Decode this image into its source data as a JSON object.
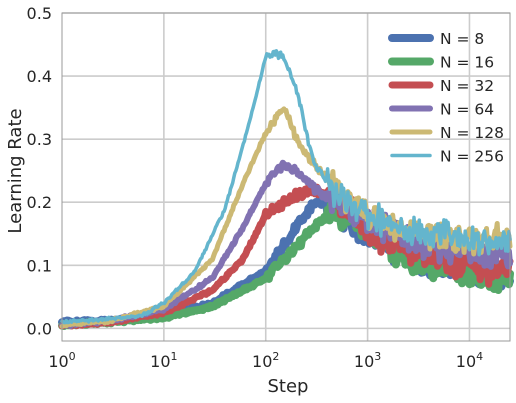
{
  "chart_data": {
    "type": "line",
    "title": "",
    "xlabel": "Step",
    "ylabel": "Learning Rate",
    "xscale": "log",
    "xlim": [
      1,
      25000
    ],
    "ylim": [
      -0.02,
      0.5
    ],
    "grid": true,
    "legend_position": "top-right",
    "x_ticks": [
      {
        "value": 1,
        "base": "10",
        "exp": "0"
      },
      {
        "value": 10,
        "base": "10",
        "exp": "1"
      },
      {
        "value": 100,
        "base": "10",
        "exp": "2"
      },
      {
        "value": 1000,
        "base": "10",
        "exp": "3"
      },
      {
        "value": 10000,
        "base": "10",
        "exp": "4"
      }
    ],
    "y_ticks": [
      "0.0",
      "0.1",
      "0.2",
      "0.3",
      "0.4",
      "0.5"
    ],
    "y_tick_values": [
      0.0,
      0.1,
      0.2,
      0.3,
      0.4,
      0.5
    ],
    "series": [
      {
        "name": "N = 8",
        "color": "#4C72B0",
        "width": 8,
        "x": [
          1,
          3,
          10,
          30,
          60,
          100,
          200,
          300,
          400,
          500,
          1000,
          2000,
          5000,
          10000,
          25000
        ],
        "y": [
          0.01,
          0.012,
          0.02,
          0.04,
          0.07,
          0.09,
          0.16,
          0.2,
          0.2,
          0.19,
          0.15,
          0.12,
          0.1,
          0.09,
          0.08
        ]
      },
      {
        "name": "N = 16",
        "color": "#55A868",
        "width": 8,
        "x": [
          1,
          3,
          10,
          30,
          60,
          100,
          200,
          300,
          400,
          500,
          700,
          1000,
          2000,
          5000,
          10000,
          25000
        ],
        "y": [
          0.005,
          0.01,
          0.017,
          0.035,
          0.06,
          0.08,
          0.13,
          0.16,
          0.18,
          0.19,
          0.17,
          0.15,
          0.12,
          0.1,
          0.09,
          0.08
        ]
      },
      {
        "name": "N = 32",
        "color": "#C44E52",
        "width": 7,
        "x": [
          1,
          3,
          10,
          30,
          60,
          100,
          150,
          200,
          300,
          500,
          1000,
          2000,
          5000,
          10000,
          25000
        ],
        "y": [
          0.005,
          0.01,
          0.025,
          0.06,
          0.11,
          0.18,
          0.2,
          0.21,
          0.22,
          0.21,
          0.16,
          0.13,
          0.11,
          0.1,
          0.09
        ]
      },
      {
        "name": "N = 64",
        "color": "#8172B2",
        "width": 6,
        "x": [
          1,
          3,
          10,
          30,
          60,
          100,
          150,
          200,
          300,
          500,
          1000,
          2000,
          5000,
          10000,
          25000
        ],
        "y": [
          0.005,
          0.012,
          0.03,
          0.08,
          0.16,
          0.23,
          0.26,
          0.25,
          0.22,
          0.2,
          0.17,
          0.15,
          0.13,
          0.12,
          0.11
        ]
      },
      {
        "name": "N = 128",
        "color": "#CCB974",
        "width": 5,
        "x": [
          1,
          3,
          10,
          30,
          60,
          100,
          150,
          200,
          300,
          500,
          1000,
          2000,
          5000,
          10000,
          25000
        ],
        "y": [
          0.005,
          0.012,
          0.035,
          0.11,
          0.23,
          0.31,
          0.35,
          0.3,
          0.26,
          0.22,
          0.18,
          0.16,
          0.15,
          0.14,
          0.14
        ]
      },
      {
        "name": "N = 256",
        "color": "#64B5CD",
        "width": 3.5,
        "x": [
          1,
          3,
          6,
          10,
          20,
          40,
          70,
          100,
          120,
          150,
          200,
          250,
          300,
          500,
          1000,
          2000,
          5000,
          10000,
          25000
        ],
        "y": [
          0.01,
          0.015,
          0.02,
          0.04,
          0.09,
          0.19,
          0.33,
          0.43,
          0.44,
          0.43,
          0.38,
          0.31,
          0.26,
          0.21,
          0.18,
          0.16,
          0.15,
          0.14,
          0.13
        ]
      }
    ]
  }
}
